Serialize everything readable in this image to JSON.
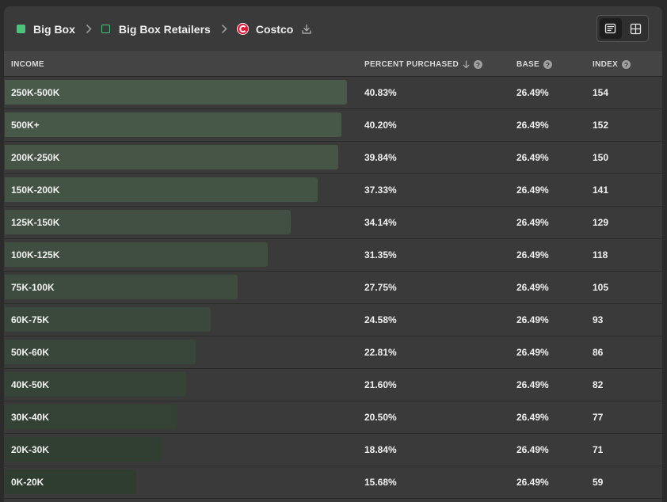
{
  "breadcrumb": {
    "items": [
      {
        "label": "Big Box",
        "marker": "filled-square",
        "color": "#4ac47a"
      },
      {
        "label": "Big Box Retailers",
        "marker": "outline-square",
        "color": "#4ac47a"
      },
      {
        "label": "Costco",
        "marker": "costco-logo",
        "color": "#e31837"
      }
    ]
  },
  "view_toggle": {
    "active": "list",
    "options": [
      "list-view-icon",
      "grid-view-icon"
    ]
  },
  "table": {
    "columns": {
      "income": "INCOME",
      "percent": "PERCENT PURCHASED",
      "base": "BASE",
      "index": "INDEX"
    },
    "sort": {
      "column": "percent",
      "direction": "desc"
    },
    "bar_scale_max": 41.4,
    "rows": [
      {
        "income": "250K-500K",
        "percent": "40.83%",
        "value": 40.83,
        "base": "26.49%",
        "index": "154"
      },
      {
        "income": "500K+",
        "percent": "40.20%",
        "value": 40.2,
        "base": "26.49%",
        "index": "152"
      },
      {
        "income": "200K-250K",
        "percent": "39.84%",
        "value": 39.84,
        "base": "26.49%",
        "index": "150"
      },
      {
        "income": "150K-200K",
        "percent": "37.33%",
        "value": 37.33,
        "base": "26.49%",
        "index": "141"
      },
      {
        "income": "125K-150K",
        "percent": "34.14%",
        "value": 34.14,
        "base": "26.49%",
        "index": "129"
      },
      {
        "income": "100K-125K",
        "percent": "31.35%",
        "value": 31.35,
        "base": "26.49%",
        "index": "118"
      },
      {
        "income": "75K-100K",
        "percent": "27.75%",
        "value": 27.75,
        "base": "26.49%",
        "index": "105"
      },
      {
        "income": "60K-75K",
        "percent": "24.58%",
        "value": 24.58,
        "base": "26.49%",
        "index": "93"
      },
      {
        "income": "50K-60K",
        "percent": "22.81%",
        "value": 22.81,
        "base": "26.49%",
        "index": "86"
      },
      {
        "income": "40K-50K",
        "percent": "21.60%",
        "value": 21.6,
        "base": "26.49%",
        "index": "82"
      },
      {
        "income": "30K-40K",
        "percent": "20.50%",
        "value": 20.5,
        "base": "26.49%",
        "index": "77"
      },
      {
        "income": "20K-30K",
        "percent": "18.84%",
        "value": 18.84,
        "base": "26.49%",
        "index": "71"
      },
      {
        "income": "0K-20K",
        "percent": "15.68%",
        "value": 15.68,
        "base": "26.49%",
        "index": "59"
      }
    ]
  },
  "colors": {
    "panel_bg": "#3a3a3a",
    "bar_top": "#4a5a4a",
    "bar_bottom": "#2f3d31",
    "accent_green": "#4ac47a",
    "costco_red": "#e31837"
  }
}
